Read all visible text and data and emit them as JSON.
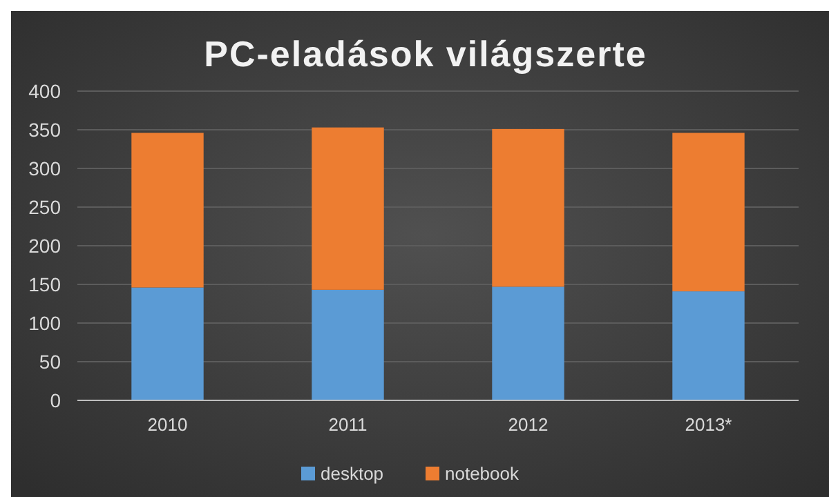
{
  "chart_data": {
    "type": "bar",
    "title": "PC-eladások világszerte",
    "stacked": true,
    "categories": [
      "2010",
      "2011",
      "2012",
      "2013*"
    ],
    "series": [
      {
        "name": "desktop",
        "color": "#5b9bd5",
        "values": [
          146,
          143,
          147,
          141
        ]
      },
      {
        "name": "notebook",
        "color": "#ed7d31",
        "values": [
          200,
          210,
          204,
          205
        ]
      }
    ],
    "ylim": [
      0,
      400
    ],
    "yticks": [
      0,
      50,
      100,
      150,
      200,
      250,
      300,
      350,
      400
    ],
    "grid": "y",
    "legend": "bottom"
  }
}
